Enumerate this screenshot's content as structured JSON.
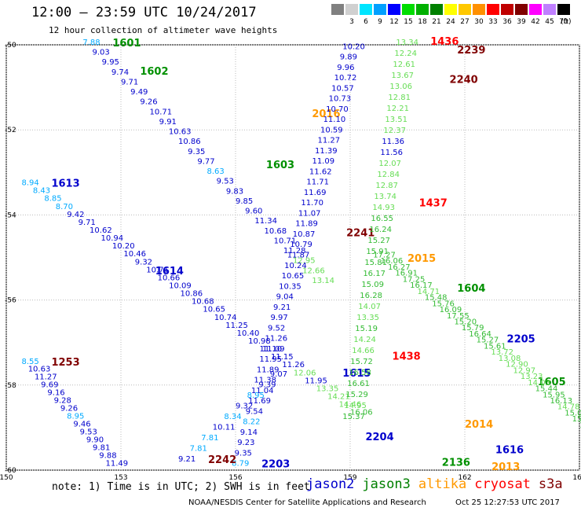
{
  "header": {
    "title": "12:00 — 23:59 UTC 10/24/2017",
    "subtitle": "12 hour collection of altimeter wave heights"
  },
  "scale": {
    "unit": "(ft)",
    "bins": [
      {
        "label": "",
        "color": "#808080"
      },
      {
        "label": "3",
        "color": "#d0d0d0"
      },
      {
        "label": "6",
        "color": "#00e5ff"
      },
      {
        "label": "9",
        "color": "#00a0ff"
      },
      {
        "label": "12",
        "color": "#0000ff"
      },
      {
        "label": "15",
        "color": "#00dd00"
      },
      {
        "label": "18",
        "color": "#00b000"
      },
      {
        "label": "21",
        "color": "#008000"
      },
      {
        "label": "24",
        "color": "#ffff00"
      },
      {
        "label": "27",
        "color": "#ffc800"
      },
      {
        "label": "30",
        "color": "#ff9000"
      },
      {
        "label": "33",
        "color": "#ff0000"
      },
      {
        "label": "36",
        "color": "#c00000"
      },
      {
        "label": "39",
        "color": "#800000"
      },
      {
        "label": "42",
        "color": "#ff00ff"
      },
      {
        "label": "45",
        "color": "#c080ff"
      },
      {
        "label": "70",
        "color": "#000000"
      }
    ]
  },
  "note": "note: 1) Time is in UTC; 2) SWH is in feet",
  "legend": [
    {
      "name": "jason2",
      "color": "#0000cc"
    },
    {
      "name": "jason3",
      "color": "#008000"
    },
    {
      "name": "altika",
      "color": "#ff9900"
    },
    {
      "name": "cryosat",
      "color": "#ff0000"
    },
    {
      "name": "s3a",
      "color": "#800000"
    }
  ],
  "footer": {
    "left": "NOAA/NESDIS Center for Satellite Applications and Research",
    "right": "Oct 25 12:27:53 UTC 2017"
  },
  "chart_data": {
    "type": "scatter",
    "xlim": [
      150,
      165
    ],
    "ylim": [
      -60,
      -50
    ],
    "x_ticks": [
      150,
      153,
      156,
      159,
      162,
      165
    ],
    "y_ticks": [
      -50,
      -52,
      -54,
      -56,
      -58,
      -60
    ],
    "grid": true,
    "tracks": [
      {
        "pass": "1601",
        "satellite": "jason3",
        "color": "#009000",
        "start": [
          152.0,
          -50.0
        ],
        "end": [
          158.0,
          -55.6
        ],
        "values": [
          "7.88",
          "9.03",
          "9.95",
          "9.74",
          "9.71",
          "9.49",
          "9.26",
          "10.71",
          "9.91",
          "10.63",
          "10.86",
          "9.35",
          "9.77",
          "8.63",
          "9.53",
          "9.83",
          "9.85",
          "9.60",
          "11.34",
          "10.68",
          "10.71",
          "11.28",
          "12.95",
          "12.66",
          "13.14"
        ]
      },
      {
        "pass": "1602",
        "satellite": "jason3",
        "color": "#009000",
        "label_at": [
          153.5,
          -50.7
        ]
      },
      {
        "pass": "1603",
        "satellite": "jason3",
        "color": "#009000",
        "label_at": [
          156.8,
          -52.9
        ]
      },
      {
        "pass": "1613",
        "satellite": "jason2",
        "color": "#0000cc",
        "start": [
          150.4,
          -53.3
        ],
        "end": [
          159.0,
          -58.7
        ],
        "values": [
          "8.94",
          "8.43",
          "8.85",
          "8.70",
          "9.42",
          "9.71",
          "10.62",
          "10.94",
          "10.20",
          "10.46",
          "9.32",
          "10.71",
          "10.66",
          "10.09",
          "10.86",
          "10.68",
          "10.65",
          "10.74",
          "11.25",
          "10.40",
          "10.98",
          "11.10",
          "11.15",
          "11.26",
          "12.06",
          "11.95",
          "13.35",
          "14.21",
          "14.46",
          "16.06"
        ]
      },
      {
        "pass": "1614",
        "satellite": "jason2",
        "color": "#0000cc",
        "label_at": [
          153.9,
          -55.4
        ]
      },
      {
        "pass": "2016",
        "satellite": "altika",
        "color": "#ff9900",
        "label_at": [
          158.0,
          -51.7
        ]
      },
      {
        "pass": "2203",
        "satellite": "jason2",
        "color": "#0000cc",
        "start": [
          155.9,
          -59.9
        ],
        "end": [
          158.8,
          -50.1
        ],
        "values": [
          "8.79",
          "9.35",
          "9.23",
          "9.14",
          "8.22",
          "9.54",
          "11.69",
          "11.04",
          "11.38",
          "11.89",
          "11.95",
          "11.09",
          "11.26",
          "9.52",
          "9.97",
          "9.21",
          "9.04",
          "10.35",
          "10.65",
          "10.24",
          "11.87",
          "10.79",
          "10.87",
          "11.89",
          "11.07",
          "11.70",
          "11.69",
          "11.71",
          "11.62",
          "11.09",
          "11.39",
          "11.27",
          "10.59",
          "11.10",
          "10.70",
          "10.73",
          "10.57",
          "10.72",
          "9.96",
          "9.89",
          "10.20"
        ]
      },
      {
        "pass": "1615",
        "satellite": "jason2",
        "color": "#0000cc",
        "label_at": [
          158.8,
          -57.8
        ]
      },
      {
        "pass": "2204",
        "satellite": "jason2",
        "color": "#0000cc",
        "label_at": [
          159.4,
          -59.3
        ]
      },
      {
        "pass": "2205",
        "satellite": "jason2",
        "color": "#0000cc",
        "label_at": [
          163.1,
          -57.0
        ]
      },
      {
        "pass": "1616",
        "satellite": "jason2",
        "color": "#0000cc",
        "label_at": [
          162.8,
          -59.6
        ]
      },
      {
        "pass": "1253",
        "satellite": "s3a",
        "color": "#800000",
        "start": [
          150.4,
          -57.5
        ],
        "end": [
          152.6,
          -59.9
        ],
        "values": [
          "8.55",
          "10.63",
          "11.27",
          "9.69",
          "9.16",
          "9.28",
          "9.26",
          "8.95",
          "9.46",
          "9.53",
          "9.90",
          "9.81",
          "9.88",
          "11.49"
        ]
      },
      {
        "pass": "2242",
        "satellite": "s3a",
        "color": "#800000",
        "start": [
          154.5,
          -59.8
        ],
        "end": [
          156.9,
          -57.8
        ],
        "values": [
          "9.21",
          "7.81",
          "7.81",
          "10.11",
          "8.34",
          "9.32",
          "8.95",
          "9.39",
          "9.07"
        ]
      },
      {
        "pass": "1436",
        "satellite": "cryosat",
        "color": "#ff0000",
        "label_at": [
          161.1,
          -50.0
        ]
      },
      {
        "pass": "2239",
        "satellite": "s3a",
        "color": "#800000",
        "label_at": [
          161.8,
          -50.2
        ]
      },
      {
        "pass": "2240",
        "satellite": "s3a",
        "color": "#800000",
        "label_at": [
          161.6,
          -50.9
        ]
      },
      {
        "pass": "1437",
        "satellite": "cryosat",
        "color": "#ff0000",
        "label_at": [
          160.8,
          -53.8
        ]
      },
      {
        "pass": "2241",
        "satellite": "s3a",
        "color": "#800000",
        "label_at": [
          158.9,
          -54.5
        ]
      },
      {
        "pass": "2015",
        "satellite": "altika",
        "color": "#ff9900",
        "label_at": [
          160.5,
          -55.1
        ]
      },
      {
        "pass": "1604",
        "satellite": "jason3",
        "color": "#009000",
        "label_at": [
          161.8,
          -55.8
        ]
      },
      {
        "pass": "1438",
        "satellite": "cryosat",
        "color": "#ff0000",
        "label_at": [
          160.1,
          -57.4
        ]
      },
      {
        "pass": "2014",
        "satellite": "altika",
        "color": "#ff9900",
        "label_at": [
          162.0,
          -59.0
        ]
      },
      {
        "pass": "1605",
        "satellite": "jason3",
        "color": "#009000",
        "label_at": [
          163.9,
          -58.0
        ]
      },
      {
        "pass": "2013",
        "satellite": "altika",
        "color": "#ff9900",
        "label_at": [
          162.7,
          -60.0
        ]
      },
      {
        "pass": "2136",
        "satellite": "jason3",
        "color": "#009000",
        "label_at": [
          161.4,
          -59.9
        ]
      },
      {
        "pass": "jason3-north",
        "satellite": "jason3",
        "color": "#33dd33",
        "start": [
          158.8,
          -58.8
        ],
        "end": [
          160.2,
          -50.0
        ],
        "values": [
          "15.37",
          "14.95",
          "15.29",
          "16.61",
          "16.58",
          "15.72",
          "14.66",
          "14.24",
          "15.19",
          "13.35",
          "14.07",
          "16.28",
          "15.09",
          "16.17",
          "15.81",
          "15.91",
          "15.27",
          "16.24",
          "16.55",
          "14.93",
          "13.74",
          "12.87",
          "12.84",
          "12.07",
          "11.56",
          "11.36",
          "12.37",
          "13.51",
          "12.21",
          "12.81",
          "13.06",
          "13.67",
          "12.61",
          "12.24",
          "13.34"
        ]
      },
      {
        "pass": "jason3-south",
        "satellite": "jason3",
        "color": "#33dd33",
        "start": [
          159.6,
          -55.0
        ],
        "end": [
          165.0,
          -59.0
        ],
        "values": [
          "17.27",
          "16.06",
          "16.27",
          "16.91",
          "17.25",
          "16.17",
          "14.71",
          "15.48",
          "15.76",
          "16.09",
          "17.55",
          "15.20",
          "15.79",
          "16.64",
          "15.27",
          "15.61",
          "13.72",
          "13.08",
          "12.90",
          "12.97",
          "13.23",
          "14.03",
          "15.44",
          "15.95",
          "16.13",
          "14.78",
          "15.02",
          "15.43",
          "16.05"
        ]
      }
    ]
  }
}
